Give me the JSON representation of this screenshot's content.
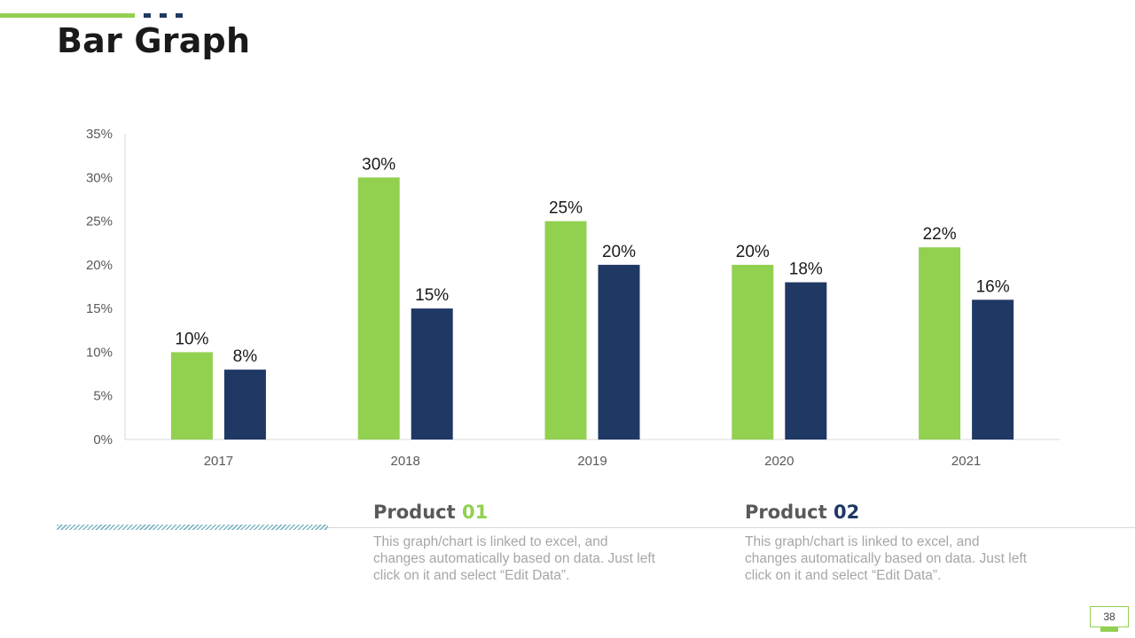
{
  "slide": {
    "title": "Bar Graph",
    "page_number": "38"
  },
  "colors": {
    "product_01": "#92d050",
    "product_02": "#1f3864",
    "axis": "#d9d9d9"
  },
  "products": [
    {
      "label": "Product",
      "number": "01",
      "description": "This graph/chart is linked to excel, and changes automatically based on data. Just left click on it and select “Edit Data”."
    },
    {
      "label": "Product",
      "number": "02",
      "description": "This graph/chart is linked to excel, and changes automatically based on data. Just left click on it and select “Edit Data”."
    }
  ],
  "chart_data": {
    "type": "bar",
    "title": "",
    "xlabel": "",
    "ylabel": "",
    "categories": [
      "2017",
      "2018",
      "2019",
      "2020",
      "2021"
    ],
    "series": [
      {
        "name": "Product 01",
        "values": [
          10,
          30,
          25,
          20,
          22
        ],
        "labels": [
          "10%",
          "30%",
          "25%",
          "20%",
          "22%"
        ]
      },
      {
        "name": "Product 02",
        "values": [
          8,
          15,
          20,
          18,
          16
        ],
        "labels": [
          "8%",
          "15%",
          "20%",
          "18%",
          "16%"
        ]
      }
    ],
    "ylim": [
      0,
      35
    ],
    "yticks": [
      0,
      5,
      10,
      15,
      20,
      25,
      30,
      35
    ],
    "ytick_labels": [
      "0%",
      "5%",
      "10%",
      "15%",
      "20%",
      "25%",
      "30%",
      "35%"
    ],
    "grid": false,
    "legend": "none"
  }
}
